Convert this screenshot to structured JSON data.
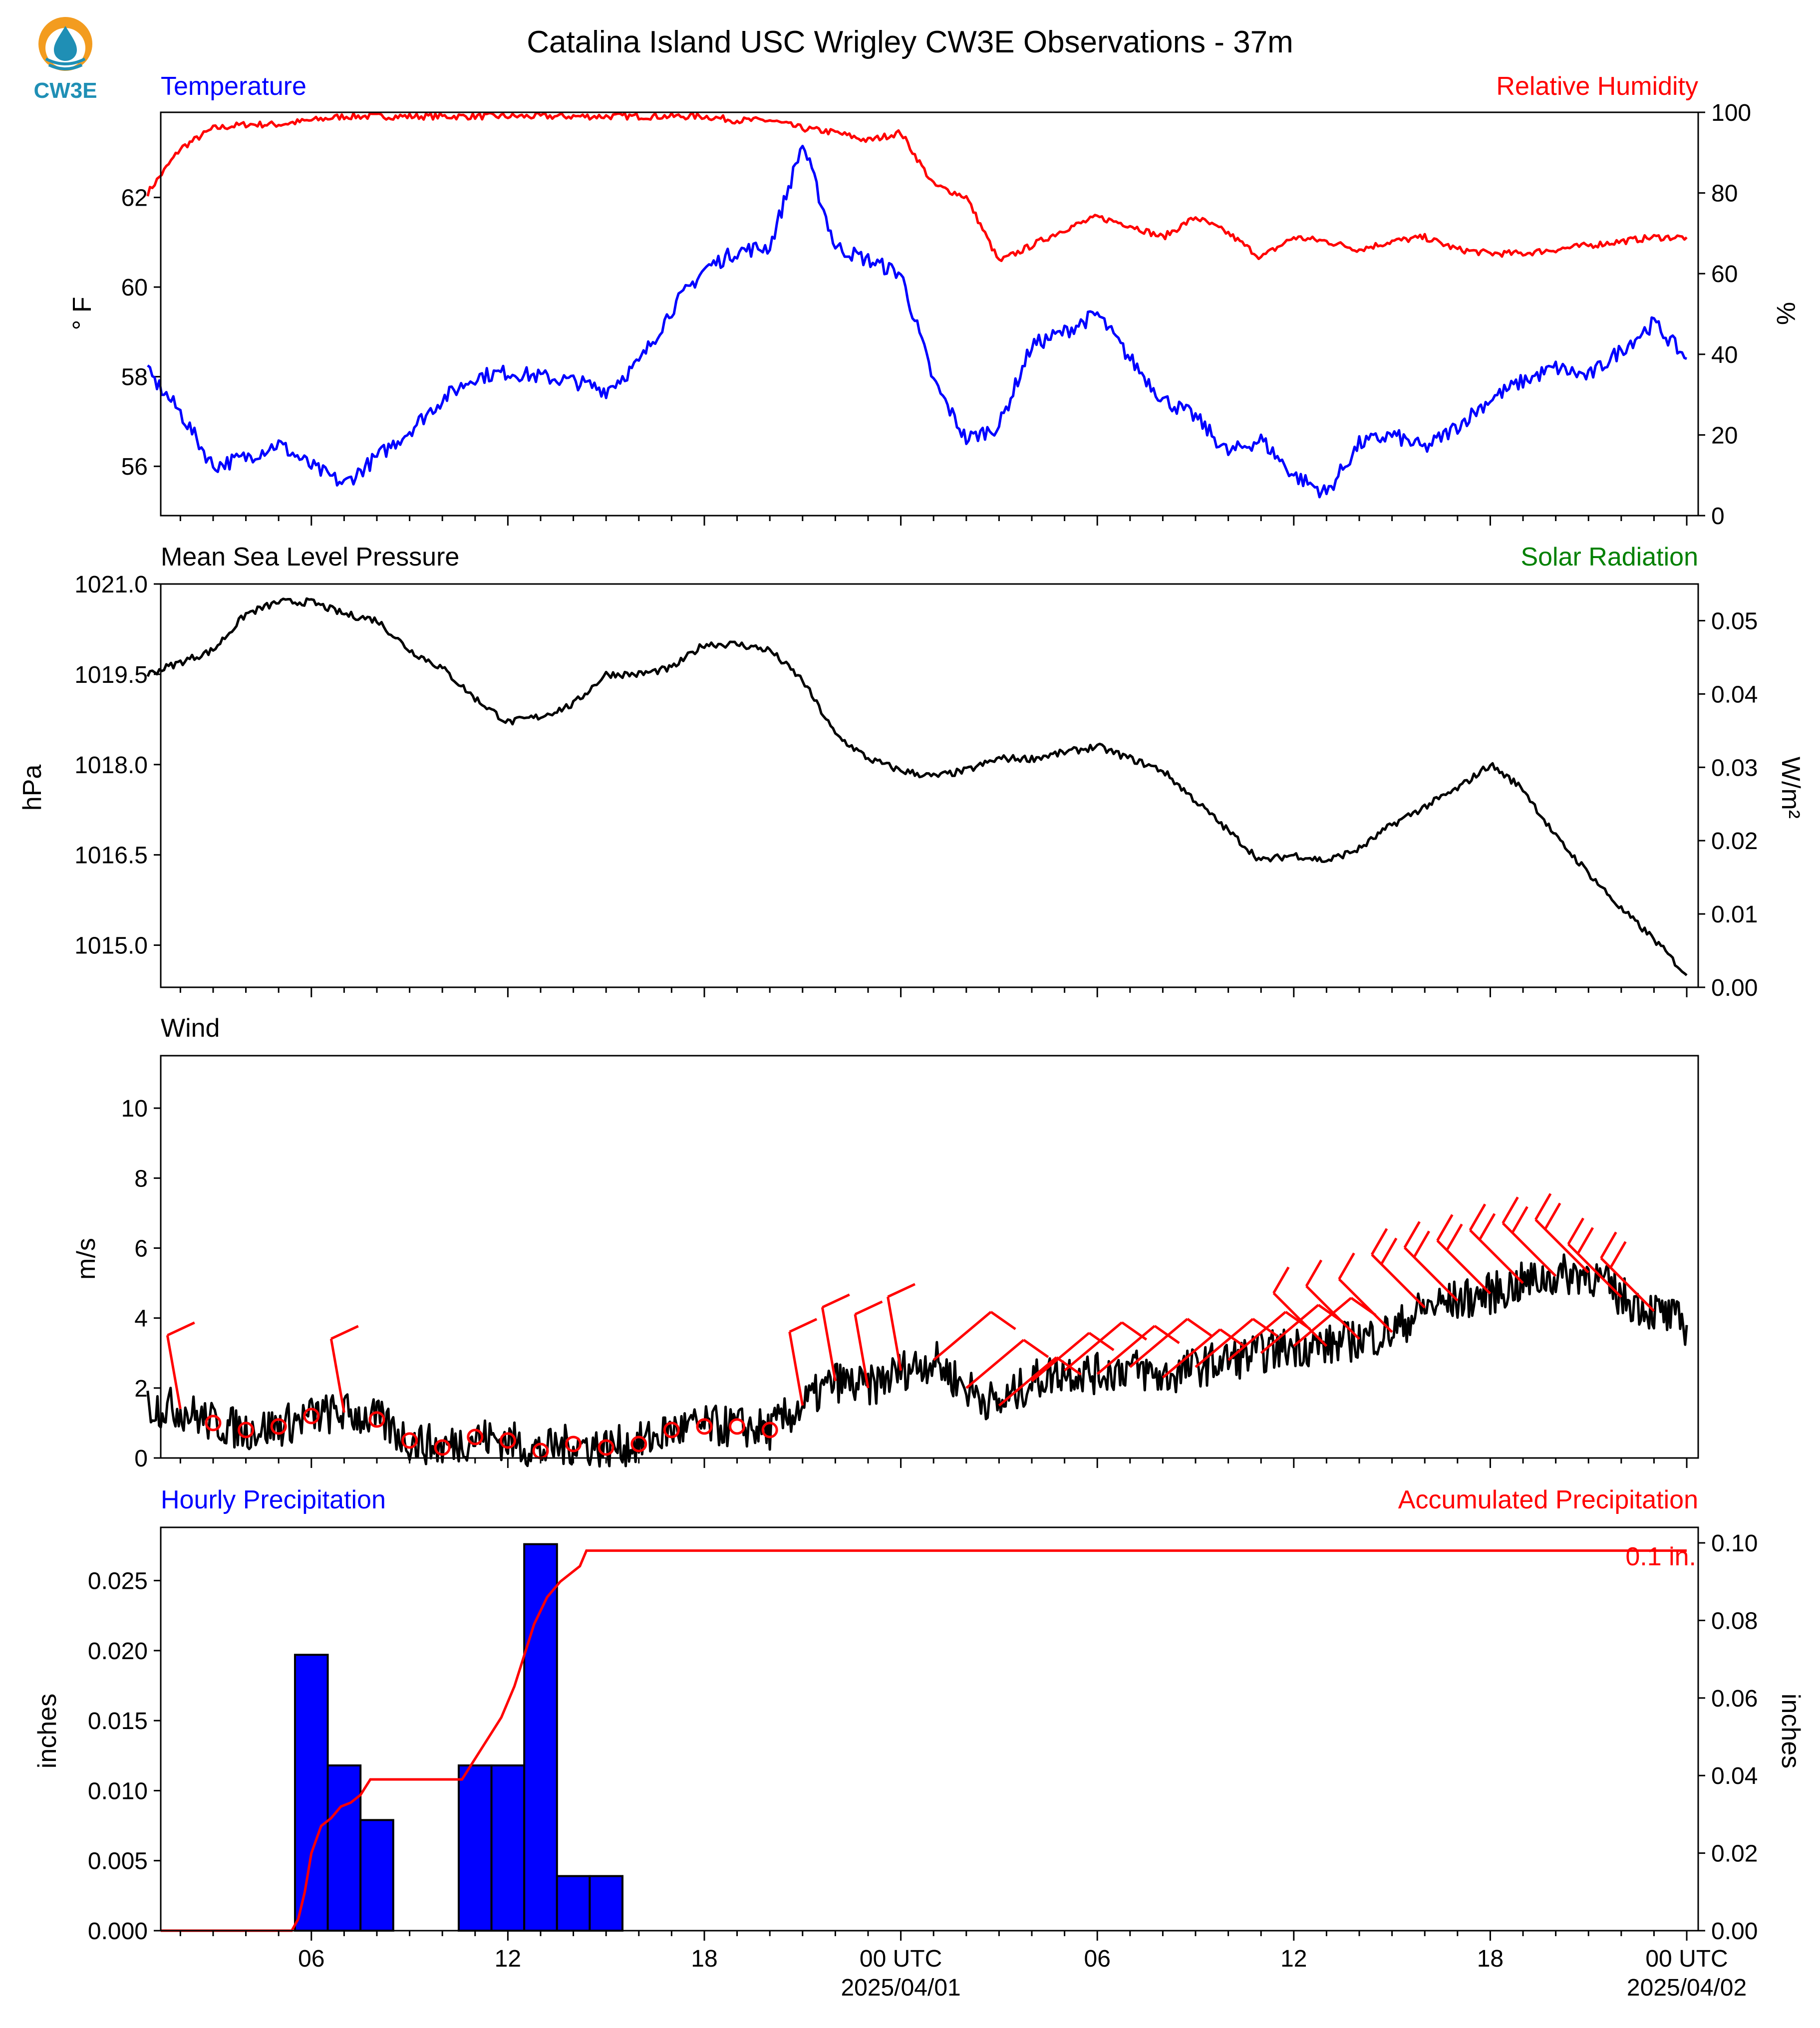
{
  "title": "Catalina Island USC Wrigley CW3E Observations - 37m",
  "logo": {
    "text": "CW3E",
    "colors": {
      "ring": "#f39c1f",
      "drop": "#1f8fb5",
      "text": "#1f8fb5"
    }
  },
  "colors": {
    "blue": "#0000ff",
    "red": "#ff0000",
    "green": "#008000",
    "black": "#000000"
  },
  "time_axis": {
    "hours_total": 47,
    "tick_labels": [
      {
        "h": 5,
        "label": "06"
      },
      {
        "h": 11,
        "label": "12"
      },
      {
        "h": 17,
        "label": "18"
      },
      {
        "h": 23,
        "label": "00 UTC",
        "sub": "2025/04/01"
      },
      {
        "h": 29,
        "label": "06"
      },
      {
        "h": 35,
        "label": "12"
      },
      {
        "h": 41,
        "label": "18"
      },
      {
        "h": 47,
        "label": "00 UTC",
        "sub": "2025/04/02"
      }
    ]
  },
  "chart_data": [
    {
      "type": "line",
      "panel": "temperature-humidity",
      "left_title": "Temperature",
      "right_title": "Relative Humidity",
      "ylabel": "° F",
      "y2label": "%",
      "ylim": [
        54.9,
        63.9
      ],
      "y2lim": [
        0,
        100
      ],
      "yticks": [
        56,
        58,
        60,
        62
      ],
      "y2ticks": [
        0,
        20,
        40,
        60,
        80,
        100
      ],
      "x": [
        0,
        1,
        2,
        3,
        4,
        5,
        6,
        7,
        8,
        9,
        10,
        11,
        12,
        13,
        14,
        15,
        16,
        17,
        18,
        19,
        20,
        21,
        22,
        23,
        24,
        25,
        26,
        27,
        28,
        29,
        30,
        31,
        32,
        33,
        34,
        35,
        36,
        37,
        38,
        39,
        40,
        41,
        42,
        43,
        44,
        45,
        46,
        47
      ],
      "series": [
        {
          "name": "Temperature",
          "axis": "left",
          "color": "#0000ff",
          "values": [
            58.1,
            57.2,
            56.0,
            56.2,
            56.5,
            56.0,
            55.6,
            56.2,
            56.8,
            57.5,
            58.0,
            58.1,
            58.0,
            57.9,
            57.7,
            58.3,
            59.5,
            60.4,
            60.8,
            60.9,
            63.2,
            60.9,
            60.6,
            60.3,
            57.9,
            56.6,
            56.9,
            58.7,
            59.0,
            59.4,
            58.4,
            57.5,
            57.1,
            56.3,
            56.6,
            55.8,
            55.4,
            56.5,
            56.7,
            56.4,
            56.9,
            57.5,
            57.9,
            58.2,
            58.0,
            58.6,
            59.2,
            58.4
          ]
        },
        {
          "name": "Relative Humidity",
          "axis": "right",
          "color": "#ff0000",
          "values": [
            80,
            91,
            96,
            97,
            97,
            98,
            99,
            99,
            99,
            99,
            99,
            99,
            99,
            99,
            99,
            99,
            99,
            99,
            98,
            98,
            96,
            95,
            93,
            95,
            82,
            79,
            63,
            67,
            71,
            74,
            72,
            69,
            74,
            70,
            64,
            69,
            68,
            66,
            68,
            69,
            66,
            65,
            65,
            66,
            67,
            68,
            69,
            69
          ]
        }
      ]
    },
    {
      "type": "line",
      "panel": "pressure-solar",
      "left_title": "Mean Sea Level Pressure",
      "right_title": "Solar Radiation",
      "ylabel": "hPa",
      "y2label": "W/m²",
      "ylim": [
        1014.3,
        1021.0
      ],
      "y2lim": [
        0,
        0.055
      ],
      "yticks": [
        1015.0,
        1016.5,
        1018.0,
        1019.5,
        1021.0
      ],
      "y2ticks": [
        0.0,
        0.01,
        0.02,
        0.03,
        0.04,
        0.05
      ],
      "x": [
        0,
        1,
        2,
        3,
        4,
        5,
        6,
        7,
        8,
        9,
        10,
        11,
        12,
        13,
        14,
        15,
        16,
        17,
        18,
        19,
        20,
        21,
        22,
        23,
        24,
        25,
        26,
        27,
        28,
        29,
        30,
        31,
        32,
        33,
        34,
        35,
        36,
        37,
        38,
        39,
        40,
        41,
        42,
        43,
        44,
        45,
        46,
        47
      ],
      "series": [
        {
          "name": "Mean Sea Level Pressure",
          "axis": "left",
          "color": "#000000",
          "values": [
            1019.5,
            1019.7,
            1019.9,
            1020.5,
            1020.7,
            1020.7,
            1020.5,
            1020.4,
            1019.9,
            1019.6,
            1019.1,
            1018.7,
            1018.8,
            1019.0,
            1019.5,
            1019.5,
            1019.6,
            1020.0,
            1020.0,
            1019.9,
            1019.4,
            1018.5,
            1018.1,
            1017.9,
            1017.8,
            1017.9,
            1018.1,
            1018.1,
            1018.2,
            1018.3,
            1018.1,
            1017.9,
            1017.4,
            1016.9,
            1016.4,
            1016.5,
            1016.4,
            1016.6,
            1017.0,
            1017.3,
            1017.6,
            1018.0,
            1017.6,
            1016.8,
            1016.2,
            1015.6,
            1015.1,
            1014.5
          ]
        }
      ]
    },
    {
      "type": "line",
      "panel": "wind",
      "left_title": "Wind",
      "ylabel": "m/s",
      "ylim": [
        0,
        11.5
      ],
      "yticks": [
        0,
        2,
        4,
        6,
        8,
        10
      ],
      "x": [
        0,
        1,
        2,
        3,
        4,
        5,
        6,
        7,
        8,
        9,
        10,
        11,
        12,
        13,
        14,
        15,
        16,
        17,
        18,
        19,
        20,
        21,
        22,
        23,
        24,
        25,
        26,
        27,
        28,
        29,
        30,
        31,
        32,
        33,
        34,
        35,
        36,
        37,
        38,
        39,
        40,
        41,
        42,
        43,
        44,
        45,
        46,
        47
      ],
      "series": [
        {
          "name": "Wind Speed",
          "color": "#000000",
          "values": [
            1.5,
            1.4,
            1.0,
            0.8,
            0.9,
            1.2,
            1.3,
            1.1,
            0.5,
            0.3,
            0.6,
            0.5,
            0.2,
            0.4,
            0.3,
            0.4,
            0.8,
            0.9,
            0.9,
            0.8,
            1.5,
            2.2,
            2.0,
            2.5,
            2.8,
            2.0,
            1.5,
            2.2,
            2.5,
            2.4,
            2.6,
            2.3,
            2.6,
            2.8,
            3.0,
            3.2,
            3.2,
            3.4,
            3.6,
            4.3,
            4.5,
            4.7,
            5.0,
            5.2,
            5.3,
            4.6,
            4.2,
            3.8
          ]
        }
      ],
      "barbs_note": "red wind barbs and calm circles along the series"
    },
    {
      "type": "bar",
      "panel": "precipitation",
      "left_title": "Hourly Precipitation",
      "right_title": "Accumulated Precipitation",
      "ylabel": "inches",
      "y2label": "inches",
      "ylim": [
        0,
        0.0288
      ],
      "y2lim": [
        0,
        0.104
      ],
      "yticks": [
        0.0,
        0.005,
        0.01,
        0.015,
        0.02,
        0.025
      ],
      "y2ticks": [
        0.0,
        0.02,
        0.04,
        0.06,
        0.08,
        0.1
      ],
      "bars": [
        {
          "h": 4,
          "value": 0.0197
        },
        {
          "h": 5,
          "value": 0.0118
        },
        {
          "h": 6,
          "value": 0.0079
        },
        {
          "h": 9,
          "value": 0.0118
        },
        {
          "h": 10,
          "value": 0.0118
        },
        {
          "h": 11,
          "value": 0.0276
        },
        {
          "h": 12,
          "value": 0.0039
        },
        {
          "h": 13,
          "value": 0.0039
        }
      ],
      "accumulated": {
        "color": "#ff0000",
        "points": [
          [
            0,
            0
          ],
          [
            4.4,
            0
          ],
          [
            4.6,
            0.003
          ],
          [
            4.8,
            0.01
          ],
          [
            5.0,
            0.02
          ],
          [
            5.3,
            0.027
          ],
          [
            5.6,
            0.029
          ],
          [
            5.9,
            0.032
          ],
          [
            6.2,
            0.033
          ],
          [
            6.5,
            0.035
          ],
          [
            6.8,
            0.039
          ],
          [
            9.0,
            0.039
          ],
          [
            9.6,
            0.039
          ],
          [
            9.9,
            0.043
          ],
          [
            10.2,
            0.047
          ],
          [
            10.5,
            0.051
          ],
          [
            10.8,
            0.055
          ],
          [
            11.2,
            0.063
          ],
          [
            11.5,
            0.071
          ],
          [
            11.8,
            0.079
          ],
          [
            12.2,
            0.086
          ],
          [
            12.6,
            0.09
          ],
          [
            13.2,
            0.094
          ],
          [
            13.4,
            0.098
          ],
          [
            47,
            0.098
          ]
        ]
      },
      "total_label": "0.1 in."
    }
  ]
}
